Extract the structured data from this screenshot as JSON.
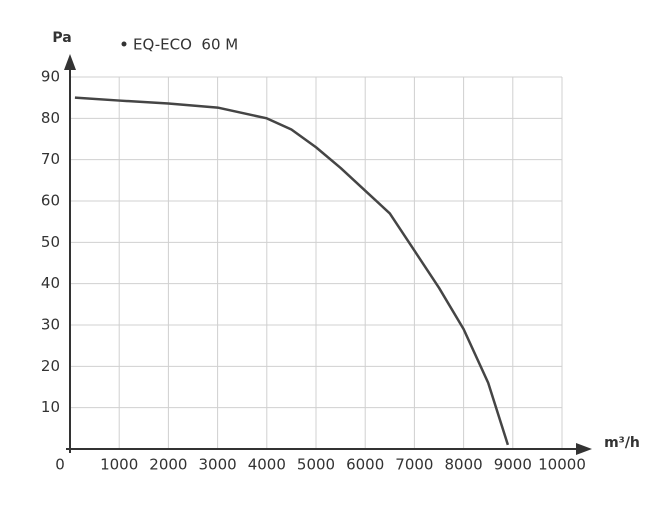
{
  "chart_data": {
    "type": "line",
    "x_label": "m³/h",
    "y_label": "Pa",
    "x": [
      100,
      1000,
      2000,
      3000,
      4000,
      4500,
      5000,
      5500,
      6000,
      6500,
      7000,
      7500,
      8000,
      8500,
      8900
    ],
    "series": [
      {
        "name": "EQ-ECO  60 M",
        "color": "#454545",
        "values": [
          85,
          84.3,
          83.6,
          82.6,
          80,
          77.3,
          73,
          68,
          62.5,
          57,
          48,
          39,
          29,
          16,
          1
        ]
      }
    ],
    "xlim": [
      0,
      10000
    ],
    "ylim": [
      0,
      90
    ],
    "xticks": [
      0,
      1000,
      2000,
      3000,
      4000,
      5000,
      6000,
      7000,
      8000,
      9000,
      10000
    ],
    "yticks": [
      10,
      20,
      30,
      40,
      50,
      60,
      70,
      80,
      90
    ],
    "grid": true
  }
}
